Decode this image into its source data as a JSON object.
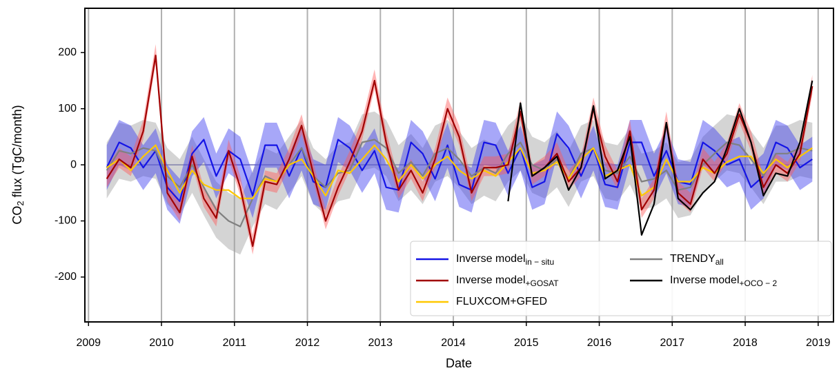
{
  "chart_data": {
    "type": "line",
    "xlabel": "Date",
    "ylabel": [
      "CO",
      "2",
      " flux (TgC/month)"
    ],
    "xlim": [
      2008.95,
      2019.21
    ],
    "ylim": [
      -280,
      279
    ],
    "xticks": [
      2009,
      2010,
      2011,
      2012,
      2013,
      2014,
      2015,
      2016,
      2017,
      2018,
      2019
    ],
    "yticks": [
      -200,
      -100,
      0,
      100,
      200
    ],
    "grid": "x",
    "legend": "lower right",
    "x": [
      2009.25,
      2009.42,
      2009.58,
      2009.75,
      2009.92,
      2010.08,
      2010.25,
      2010.42,
      2010.58,
      2010.75,
      2010.92,
      2011.08,
      2011.25,
      2011.42,
      2011.58,
      2011.75,
      2011.92,
      2012.08,
      2012.25,
      2012.42,
      2012.58,
      2012.75,
      2012.92,
      2013.08,
      2013.25,
      2013.42,
      2013.58,
      2013.75,
      2013.92,
      2014.08,
      2014.25,
      2014.42,
      2014.58,
      2014.75,
      2014.92,
      2015.08,
      2015.25,
      2015.42,
      2015.58,
      2015.75,
      2015.92,
      2016.08,
      2016.25,
      2016.42,
      2016.58,
      2016.75,
      2016.92,
      2017.08,
      2017.25,
      2017.42,
      2017.58,
      2017.75,
      2017.92,
      2018.08,
      2018.25,
      2018.42,
      2018.58,
      2018.75,
      2018.92
    ],
    "series": [
      {
        "name": "Inverse model",
        "subscript": "in − situ",
        "color": "#1414e6",
        "band_color": "#3c3cf0",
        "values": [
          -5,
          40,
          30,
          -5,
          25,
          -40,
          -65,
          20,
          45,
          -20,
          25,
          10,
          -55,
          35,
          35,
          -20,
          30,
          -30,
          -40,
          45,
          30,
          -10,
          25,
          -40,
          -45,
          40,
          20,
          -25,
          35,
          -35,
          -45,
          40,
          35,
          -15,
          30,
          -40,
          -30,
          55,
          30,
          -20,
          30,
          -35,
          -40,
          40,
          40,
          -20,
          25,
          -30,
          -35,
          40,
          25,
          0,
          10,
          -40,
          -20,
          40,
          30,
          -5,
          10
        ],
        "lower": [
          -45,
          0,
          -10,
          -45,
          -15,
          -80,
          -105,
          -20,
          5,
          -60,
          -15,
          -30,
          -95,
          -5,
          -5,
          -60,
          -10,
          -70,
          -80,
          5,
          -10,
          -50,
          -15,
          -80,
          -85,
          0,
          -20,
          -65,
          -5,
          -75,
          -85,
          0,
          -5,
          -55,
          -10,
          -80,
          -70,
          15,
          -10,
          -60,
          -10,
          -75,
          -80,
          0,
          0,
          -60,
          -15,
          -70,
          -75,
          0,
          -15,
          -40,
          -30,
          -80,
          -60,
          0,
          -10,
          -45,
          -30
        ],
        "upper": [
          35,
          80,
          70,
          35,
          65,
          0,
          -25,
          60,
          85,
          20,
          65,
          50,
          -15,
          75,
          75,
          20,
          70,
          10,
          0,
          85,
          70,
          30,
          65,
          0,
          -5,
          80,
          60,
          15,
          75,
          5,
          -5,
          80,
          75,
          25,
          70,
          0,
          10,
          95,
          70,
          20,
          70,
          5,
          0,
          80,
          80,
          20,
          65,
          10,
          5,
          80,
          65,
          40,
          50,
          0,
          20,
          80,
          70,
          35,
          50
        ]
      },
      {
        "name": "Inverse model",
        "subscript": "+GOSAT",
        "color": "#a00000",
        "band_color": "#ff5c5c",
        "values": [
          -25,
          10,
          -5,
          60,
          195,
          -50,
          -85,
          15,
          -60,
          -95,
          25,
          -40,
          -145,
          -30,
          -35,
          10,
          70,
          -15,
          -100,
          -40,
          5,
          60,
          150,
          40,
          -45,
          -10,
          -50,
          10,
          100,
          50,
          -50,
          -5,
          -5,
          0,
          95,
          -20,
          -5,
          20,
          -30,
          -5,
          100,
          15,
          -30,
          60,
          -80,
          -45,
          75,
          -50,
          -70,
          10,
          -15,
          20,
          90,
          40,
          -40,
          0,
          -15,
          20,
          140
        ],
        "lower": [
          -40,
          -5,
          -20,
          45,
          180,
          -65,
          -100,
          0,
          -75,
          -110,
          10,
          -55,
          -160,
          -45,
          -50,
          -5,
          55,
          -30,
          -115,
          -55,
          -10,
          45,
          135,
          25,
          -60,
          -25,
          -65,
          -5,
          85,
          35,
          -65,
          -20,
          -20,
          -15,
          80,
          -35,
          -20,
          5,
          -45,
          -20,
          85,
          0,
          -45,
          45,
          -95,
          -60,
          60,
          -65,
          -85,
          -5,
          -30,
          5,
          75,
          25,
          -55,
          -15,
          -30,
          5,
          125
        ],
        "upper": [
          -5,
          30,
          15,
          80,
          215,
          -30,
          -65,
          35,
          -40,
          -75,
          45,
          -20,
          -125,
          -10,
          -15,
          30,
          90,
          5,
          -80,
          -20,
          25,
          80,
          170,
          60,
          -25,
          10,
          -30,
          30,
          120,
          70,
          -30,
          15,
          15,
          20,
          115,
          0,
          15,
          40,
          -10,
          15,
          120,
          35,
          -10,
          80,
          -60,
          -25,
          95,
          -30,
          -50,
          30,
          5,
          40,
          110,
          60,
          -20,
          20,
          5,
          40,
          160
        ]
      },
      {
        "name": "FLUXCOM+GFED",
        "color": "#ffc800",
        "values": [
          -5,
          10,
          -10,
          15,
          35,
          -10,
          -50,
          -10,
          -35,
          -45,
          -45,
          -60,
          -60,
          -25,
          -30,
          0,
          10,
          -20,
          -55,
          -10,
          -15,
          10,
          35,
          10,
          -30,
          0,
          -25,
          0,
          15,
          -10,
          -25,
          -10,
          -20,
          5,
          30,
          -15,
          -10,
          5,
          -25,
          10,
          30,
          -20,
          -10,
          0,
          -55,
          -40,
          10,
          -30,
          -30,
          -5,
          -15,
          5,
          15,
          15,
          -15,
          10,
          -5,
          15,
          30
        ]
      },
      {
        "name": "TRENDY",
        "subscript": "all",
        "color": "#808080",
        "band_color": "#a0a0a0",
        "values": [
          -10,
          25,
          20,
          30,
          25,
          -20,
          -40,
          0,
          -40,
          -80,
          -100,
          -110,
          -60,
          -20,
          -30,
          0,
          30,
          -20,
          -40,
          -15,
          -10,
          40,
          45,
          30,
          -15,
          5,
          -20,
          20,
          30,
          10,
          -20,
          -5,
          -15,
          20,
          40,
          0,
          -10,
          10,
          -25,
          20,
          30,
          -10,
          -15,
          15,
          -30,
          -25,
          -10,
          -45,
          -40,
          0,
          20,
          40,
          35,
          10,
          -20,
          20,
          20,
          30,
          25
        ],
        "lower": [
          -60,
          -25,
          -30,
          -20,
          -25,
          -70,
          -90,
          -50,
          -90,
          -130,
          -150,
          -160,
          -110,
          -70,
          -80,
          -50,
          -20,
          -70,
          -90,
          -65,
          -60,
          -10,
          -5,
          -20,
          -65,
          -45,
          -70,
          -30,
          -20,
          -40,
          -70,
          -55,
          -65,
          -30,
          -10,
          -50,
          -60,
          -40,
          -75,
          -30,
          -20,
          -60,
          -65,
          -35,
          -80,
          -75,
          -60,
          -95,
          -90,
          -50,
          -30,
          -10,
          -15,
          -40,
          -70,
          -30,
          -30,
          -20,
          -25
        ],
        "upper": [
          40,
          75,
          70,
          80,
          75,
          30,
          10,
          50,
          10,
          -30,
          -50,
          -60,
          -10,
          30,
          20,
          50,
          80,
          30,
          10,
          35,
          40,
          90,
          95,
          80,
          35,
          55,
          30,
          70,
          80,
          60,
          30,
          45,
          35,
          70,
          90,
          50,
          40,
          60,
          25,
          70,
          80,
          40,
          35,
          65,
          20,
          25,
          40,
          5,
          10,
          50,
          70,
          90,
          85,
          60,
          30,
          70,
          70,
          80,
          75
        ]
      },
      {
        "name": "Inverse model",
        "subscript": "+OCO − 2",
        "color": "#000000",
        "values": [
          null,
          null,
          null,
          null,
          null,
          null,
          null,
          null,
          null,
          null,
          null,
          null,
          null,
          null,
          null,
          null,
          null,
          null,
          null,
          null,
          null,
          null,
          null,
          null,
          null,
          null,
          null,
          null,
          null,
          null,
          null,
          null,
          null,
          -65,
          110,
          -20,
          -5,
          15,
          -45,
          -5,
          105,
          -25,
          -10,
          50,
          -125,
          -70,
          75,
          -60,
          -80,
          -50,
          -30,
          30,
          100,
          40,
          -55,
          -15,
          -20,
          40,
          150
        ]
      }
    ]
  }
}
